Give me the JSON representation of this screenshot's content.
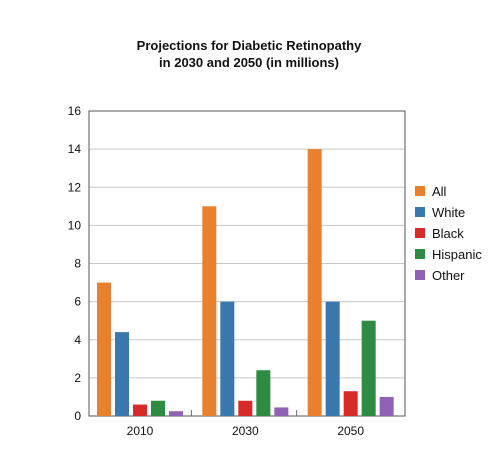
{
  "chart_data": {
    "type": "bar",
    "title_lines": [
      "Projections for Diabetic Retinopathy",
      "in 2030 and 2050 (in millions)"
    ],
    "categories": [
      "2010",
      "2030",
      "2050"
    ],
    "ylim": [
      0,
      16
    ],
    "yticks": [
      0,
      2,
      4,
      6,
      8,
      10,
      12,
      14,
      16
    ],
    "grid": true,
    "legend_position": "right",
    "series": [
      {
        "name": "All",
        "color": "#E8802E",
        "values": [
          7,
          11,
          14
        ]
      },
      {
        "name": "White",
        "color": "#3A78B0",
        "values": [
          4.4,
          6,
          6
        ]
      },
      {
        "name": "Black",
        "color": "#D92A2A",
        "values": [
          0.6,
          0.8,
          1.3
        ]
      },
      {
        "name": "Hispanic",
        "color": "#2E8B43",
        "values": [
          0.8,
          2.4,
          5
        ]
      },
      {
        "name": "Other",
        "color": "#8F62B5",
        "values": [
          0.25,
          0.45,
          1.0
        ]
      }
    ]
  }
}
